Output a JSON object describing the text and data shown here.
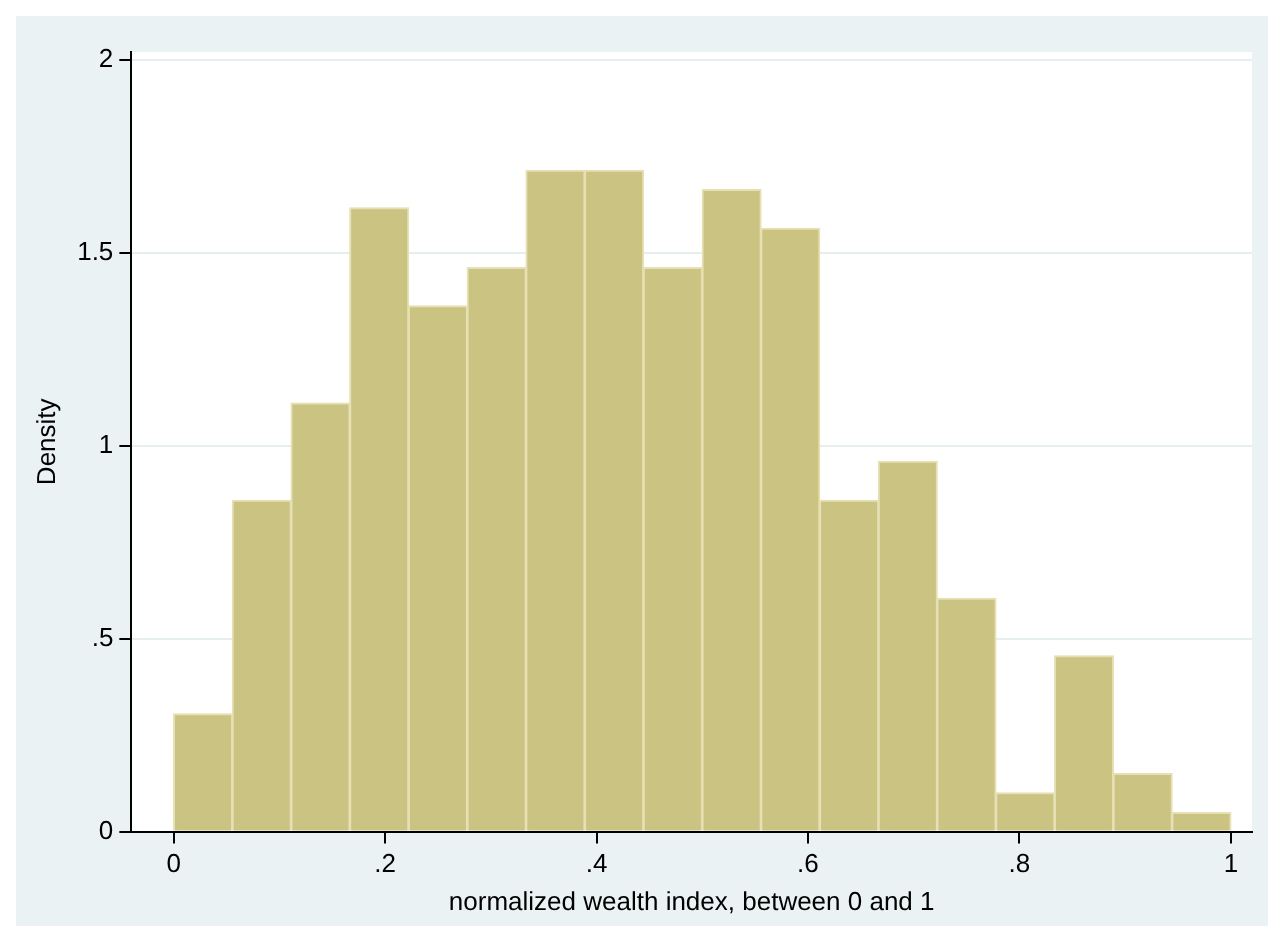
{
  "chart_data": {
    "type": "histogram",
    "xlabel": "normalized wealth index, between 0 and 1",
    "ylabel": "Density",
    "bins": [
      0,
      0.0556,
      0.1111,
      0.1667,
      0.2222,
      0.2778,
      0.3333,
      0.3889,
      0.4444,
      0.5,
      0.5556,
      0.6111,
      0.6667,
      0.7222,
      0.7778,
      0.8333,
      0.8889,
      0.9444,
      1
    ],
    "values": [
      0.305,
      0.858,
      1.11,
      1.616,
      1.362,
      1.461,
      1.713,
      1.713,
      1.461,
      1.663,
      1.563,
      0.858,
      0.959,
      0.604,
      0.1,
      0.455,
      0.15,
      0.049
    ],
    "color": "#cbc382",
    "xlim": [
      -0.04,
      1.02
    ],
    "xticks": [
      0,
      {
        "value": 0.2,
        "label": ".2"
      },
      {
        "value": 0.4,
        "label": ".4"
      },
      {
        "value": 0.6,
        "label": ".6"
      },
      {
        "value": 0.8,
        "label": ".8"
      },
      1
    ],
    "ylim": [
      0,
      2.02
    ],
    "yticks": [
      0,
      {
        "value": 0.5,
        "label": ".5"
      },
      1,
      {
        "value": 1.5,
        "label": "1.5"
      },
      2
    ],
    "grid": "y",
    "legend": false
  }
}
